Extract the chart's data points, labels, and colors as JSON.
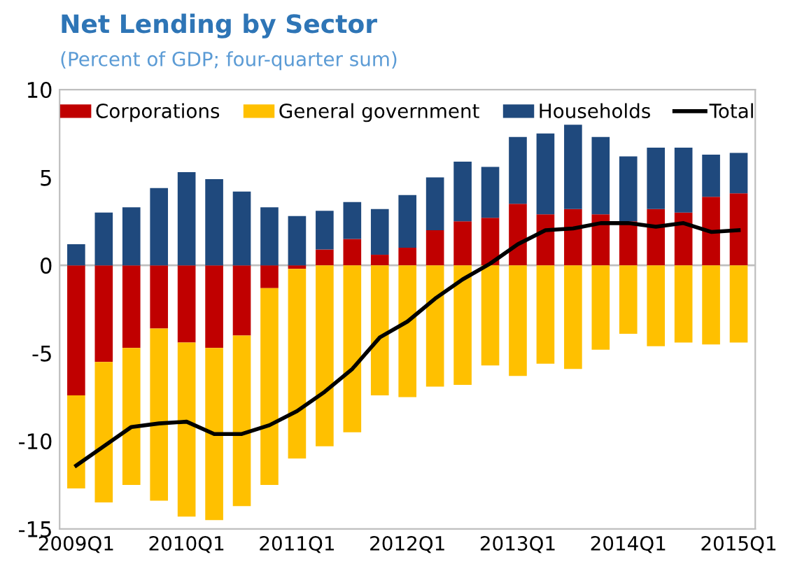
{
  "chart_data": {
    "type": "bar",
    "title": "Net Lending by Sector",
    "subtitle": "(Percent of GDP; four-quarter sum)",
    "categories": [
      "2009Q1",
      null,
      null,
      null,
      "2010Q1",
      null,
      null,
      null,
      "2011Q1",
      null,
      null,
      null,
      "2012Q1",
      null,
      null,
      null,
      "2013Q1",
      null,
      null,
      null,
      "2014Q1",
      null,
      null,
      null,
      "2015Q1"
    ],
    "stacked": true,
    "series": [
      {
        "name": "Corporations",
        "color": "#c00000",
        "values": [
          -7.4,
          -5.5,
          -4.7,
          -3.6,
          -4.4,
          -4.7,
          -4.0,
          -1.3,
          -0.2,
          0.9,
          1.5,
          0.6,
          1.0,
          2.0,
          2.5,
          2.7,
          3.5,
          2.9,
          3.2,
          2.9,
          2.5,
          3.2,
          3.0,
          3.9,
          4.1
        ]
      },
      {
        "name": "General government",
        "color": "#ffc000",
        "values": [
          -5.3,
          -8.0,
          -7.8,
          -9.8,
          -9.9,
          -9.8,
          -9.7,
          -11.2,
          -10.8,
          -10.3,
          -9.5,
          -7.4,
          -7.5,
          -6.9,
          -6.8,
          -5.7,
          -6.3,
          -5.6,
          -5.9,
          -4.8,
          -3.9,
          -4.6,
          -4.4,
          -4.5,
          -4.4
        ]
      },
      {
        "name": "Households",
        "color": "#1f497d",
        "values": [
          1.2,
          3.0,
          3.3,
          4.4,
          5.3,
          4.9,
          4.2,
          3.3,
          2.8,
          2.2,
          2.1,
          2.6,
          3.0,
          3.0,
          3.4,
          2.9,
          3.8,
          4.6,
          4.8,
          4.4,
          3.7,
          3.5,
          3.7,
          2.4,
          2.3
        ]
      },
      {
        "name": "Total",
        "type": "line",
        "color": "#000000",
        "values": [
          -11.4,
          -10.3,
          -9.2,
          -9.0,
          -8.9,
          -9.6,
          -9.6,
          -9.1,
          -8.3,
          -7.2,
          -5.9,
          -4.1,
          -3.2,
          -1.9,
          -0.8,
          0.1,
          1.2,
          2.0,
          2.1,
          2.4,
          2.4,
          2.2,
          2.4,
          1.9,
          2.0
        ]
      }
    ],
    "ylim": [
      -15,
      10
    ],
    "yticks": [
      -15,
      -10,
      -5,
      0,
      5,
      10
    ],
    "grid": false,
    "legend": "top",
    "ref_lines": [
      {
        "axis": "y",
        "value": 0,
        "color": "#bfbfbf"
      }
    ]
  }
}
